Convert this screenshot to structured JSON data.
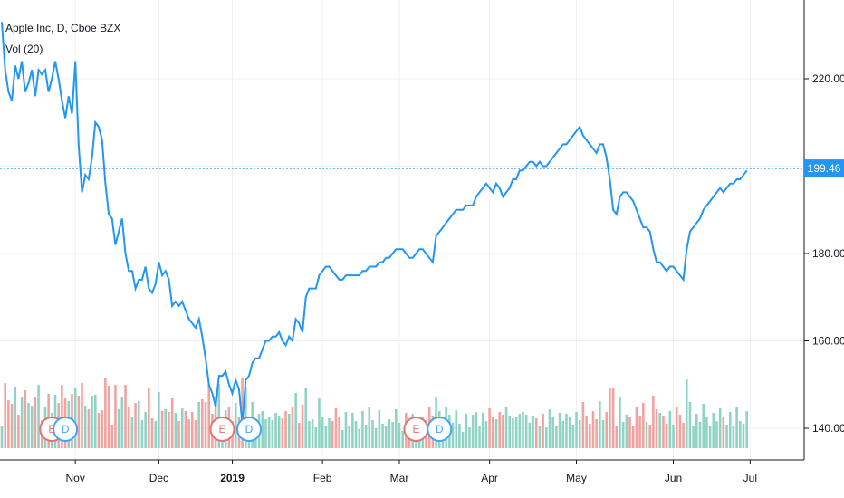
{
  "chart_data": {
    "type": "line",
    "title": "Apple Inc, D, Cboe BZX",
    "volume_label": "Vol (20)",
    "last_price": 199.46,
    "last_price_label": "199.46",
    "ylim": [
      134.5,
      236
    ],
    "y_ticks": [
      {
        "value": 140,
        "label": "140.00"
      },
      {
        "value": 160,
        "label": "160.00"
      },
      {
        "value": 180,
        "label": "180.00"
      },
      {
        "value": 220,
        "label": "220.00"
      }
    ],
    "x_ticks": [
      {
        "index": 22,
        "label": "Nov"
      },
      {
        "index": 47,
        "label": "Dec"
      },
      {
        "index": 69,
        "label": "2019"
      },
      {
        "index": 96,
        "label": "Feb"
      },
      {
        "index": 119,
        "label": "Mar"
      },
      {
        "index": 146,
        "label": "Apr"
      },
      {
        "index": 172,
        "label": "May"
      },
      {
        "index": 201,
        "label": "Jun"
      },
      {
        "index": 224,
        "label": "Jul"
      }
    ],
    "x_range": [
      0,
      238
    ],
    "price": [
      233,
      222,
      217,
      215,
      223,
      220,
      224,
      217,
      219,
      222,
      216,
      222,
      221,
      222,
      217,
      220,
      224,
      220,
      215,
      211,
      216,
      212,
      224,
      205,
      194,
      198,
      197,
      202,
      210,
      209,
      206,
      196,
      189,
      188,
      182,
      185,
      188,
      180,
      176,
      176,
      172,
      174,
      174,
      177,
      172,
      171,
      173,
      178,
      175,
      176,
      174,
      168,
      169,
      168,
      169,
      167,
      165,
      164,
      163,
      165,
      161,
      156,
      150,
      148,
      145,
      152,
      152,
      153,
      150,
      148,
      151,
      149,
      141,
      151,
      152,
      155,
      156,
      156,
      158,
      160,
      160,
      161,
      161,
      162,
      160,
      159,
      161,
      160,
      165,
      164,
      162,
      170,
      172,
      172,
      172,
      175,
      176,
      177,
      177,
      176,
      175,
      174,
      174,
      175,
      175,
      175,
      175,
      175,
      176,
      176,
      177,
      177,
      177,
      178,
      178,
      179,
      179,
      180,
      181,
      181,
      181,
      180,
      179,
      179,
      180,
      181,
      181,
      180,
      179,
      178,
      184,
      185,
      186,
      187,
      188,
      189,
      190,
      190,
      190,
      191,
      191,
      191,
      193,
      194,
      195,
      196,
      195,
      194,
      196,
      195,
      193,
      194,
      195,
      197,
      197,
      199,
      199,
      200,
      201,
      201,
      200,
      201,
      200,
      200,
      201,
      202,
      203,
      204,
      205,
      205,
      206,
      207,
      208,
      209,
      207,
      206,
      205,
      204,
      203,
      205,
      205,
      202,
      197,
      190,
      189,
      193,
      194,
      194,
      193,
      192,
      190,
      188,
      186,
      186,
      185,
      181,
      178,
      178,
      177,
      176,
      177,
      177,
      176,
      175,
      174,
      181,
      185,
      186,
      187,
      188,
      190,
      191,
      192,
      193,
      194,
      195,
      194,
      195,
      196,
      196,
      197,
      197,
      198,
      199
    ]
  },
  "page": {
    "background": "#ffffff",
    "line_color": "#2196f3",
    "volume_up_color": "#8fd3c5",
    "volume_down_color": "#f1a3a0",
    "earnings_color": "#e57373",
    "dividend_color": "#42a5f5",
    "grid_color": "#eef0f4",
    "axis_text_color": "#131722"
  },
  "events": [
    {
      "index": 15,
      "letter": "E",
      "kind": "earnings"
    },
    {
      "index": 19,
      "letter": "D",
      "kind": "dividend"
    },
    {
      "index": 66,
      "letter": "E",
      "kind": "earnings"
    },
    {
      "index": 74,
      "letter": "D",
      "kind": "dividend"
    },
    {
      "index": 124,
      "letter": "E",
      "kind": "earnings"
    },
    {
      "index": 131,
      "letter": "D",
      "kind": "dividend"
    }
  ]
}
